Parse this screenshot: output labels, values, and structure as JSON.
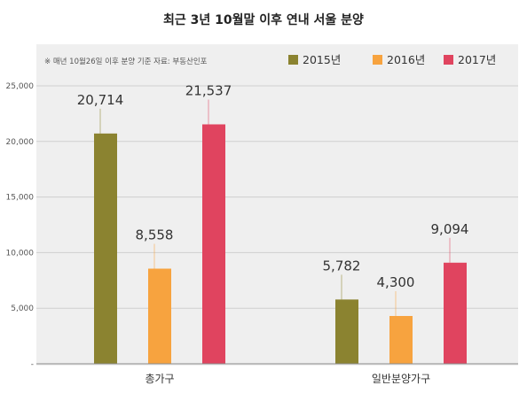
{
  "chart_data": {
    "type": "bar",
    "title": "최근 3년 10월말 이후 연내 서울 분양",
    "note": "※ 매년 10월26일 이후 분양 기준   자료: 부동산인포",
    "categories": [
      "총가구",
      "일반분양가구"
    ],
    "series": [
      {
        "name": "2015년",
        "color": "#8b8330",
        "values": [
          20714,
          5782
        ],
        "labels": [
          "20,714",
          "5,782"
        ]
      },
      {
        "name": "2016년",
        "color": "#f7a33f",
        "values": [
          8558,
          4300
        ],
        "labels": [
          "8,558",
          "4,300"
        ]
      },
      {
        "name": "2017년",
        "color": "#e0445f",
        "values": [
          21537,
          9094
        ],
        "labels": [
          "21,537",
          "9,094"
        ]
      }
    ],
    "yticks": [
      0,
      5000,
      10000,
      15000,
      20000,
      25000
    ],
    "ytick_labels": [
      "-",
      "5,000",
      "10,000",
      "15,000",
      "20,000",
      "25,000"
    ],
    "ylim": [
      0,
      25000
    ],
    "legend": "top-right",
    "grid": true
  }
}
